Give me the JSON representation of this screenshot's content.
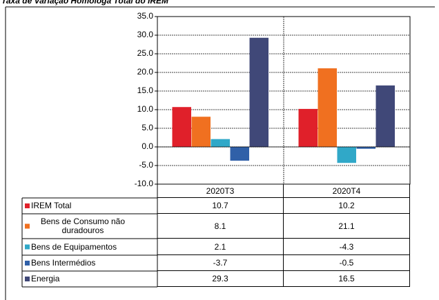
{
  "chart_data": {
    "type": "bar",
    "title": "Taxa de Variação Homóloga Total do IREM",
    "categories": [
      "2020T3",
      "2020T4"
    ],
    "series": [
      {
        "name": "IREM Total",
        "color": "#e0202a",
        "values": [
          10.7,
          10.2
        ]
      },
      {
        "name": "Bens de Consumo não duradouros",
        "color": "#f07020",
        "values": [
          8.1,
          21.1
        ]
      },
      {
        "name": "Bens de Equipamentos",
        "color": "#30a8c8",
        "values": [
          2.1,
          -4.3
        ]
      },
      {
        "name": "Bens Intermédios",
        "color": "#3060a8",
        "values": [
          -3.7,
          -0.5
        ]
      },
      {
        "name": "Energia",
        "color": "#404878",
        "values": [
          29.3,
          16.5
        ]
      }
    ],
    "ylim": [
      -10,
      35
    ],
    "yticks": [
      {
        "value": -10,
        "label": "-10.0"
      },
      {
        "value": -5,
        "label": "-5.0"
      },
      {
        "value": 0,
        "label": "0.0"
      },
      {
        "value": 5,
        "label": "5.0"
      },
      {
        "value": 10,
        "label": "10.0"
      },
      {
        "value": 15,
        "label": "15.0"
      },
      {
        "value": 20,
        "label": "20.0"
      },
      {
        "value": 25,
        "label": "25.0"
      },
      {
        "value": 30,
        "label": "30.0"
      },
      {
        "value": 35,
        "label": "35.0"
      }
    ],
    "grid": true
  }
}
